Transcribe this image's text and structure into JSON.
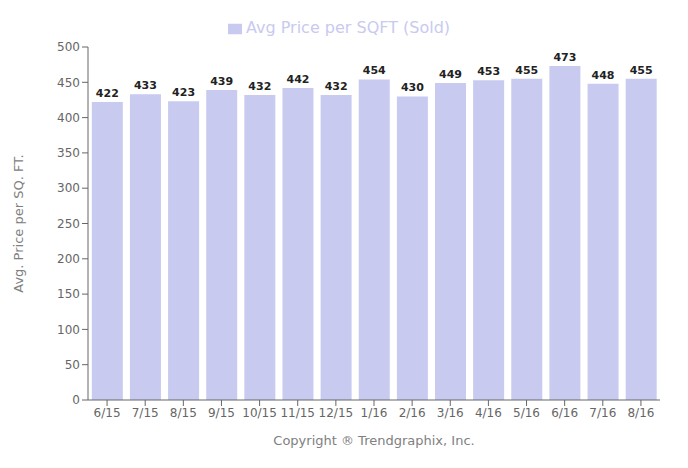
{
  "chart_data": {
    "type": "bar",
    "categories": [
      "6/15",
      "7/15",
      "8/15",
      "9/15",
      "10/15",
      "11/15",
      "12/15",
      "1/16",
      "2/16",
      "3/16",
      "4/16",
      "5/16",
      "6/16",
      "7/16",
      "8/16"
    ],
    "series": [
      {
        "name": "Avg Price per SQFT (Sold)",
        "color": "#c8caf0",
        "values": [
          422,
          433,
          423,
          439,
          432,
          442,
          432,
          454,
          430,
          449,
          453,
          455,
          473,
          448,
          455
        ]
      }
    ],
    "ylabel": "Avg. Price per SQ. FT.",
    "xlabel": "Copyright ® Trendgraphix, Inc.",
    "ylim": [
      0,
      500
    ],
    "yticks": [
      0,
      50,
      100,
      150,
      200,
      250,
      300,
      350,
      400,
      450,
      500
    ],
    "grid": false,
    "legend": "top",
    "data_labels": true
  }
}
